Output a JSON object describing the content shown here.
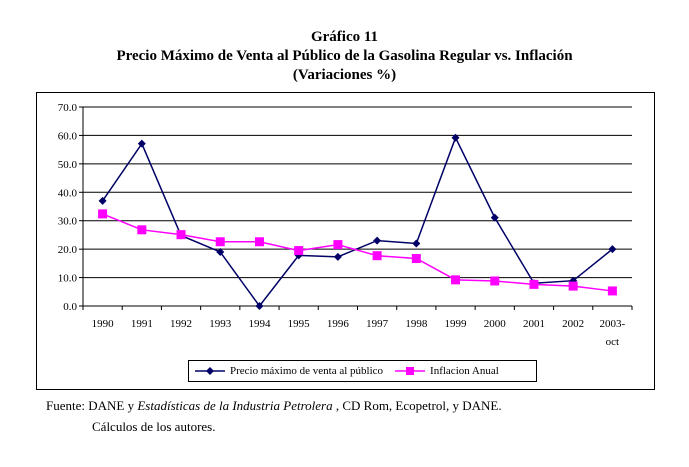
{
  "title": {
    "line1": "Gráfico 11",
    "line2": "Precio Máximo de Venta al Público de la Gasolina Regular vs. Inflación",
    "line3": "(Variaciones %)"
  },
  "chart_data": {
    "type": "line",
    "title": "Precio Máximo de Venta al Público de la Gasolina Regular vs. Inflación (Variaciones %)",
    "categories": [
      "1990",
      "1991",
      "1992",
      "1993",
      "1994",
      "1995",
      "1996",
      "1997",
      "1998",
      "1999",
      "2000",
      "2001",
      "2002",
      "2003-|oct"
    ],
    "yticks": [
      "0.0",
      "10.0",
      "20.0",
      "30.0",
      "40.0",
      "50.0",
      "60.0",
      "70.0"
    ],
    "ylim": [
      0,
      70
    ],
    "grid": true,
    "legend_position": "bottom",
    "series": [
      {
        "name": "Precio máximo de venta al público",
        "color": "#000066",
        "marker": "diamond",
        "values": [
          37.0,
          57.1,
          24.8,
          19.0,
          0.0,
          17.8,
          17.3,
          23.0,
          22.0,
          59.2,
          31.1,
          8.0,
          8.9,
          20.0
        ]
      },
      {
        "name": "Inflacion Anual",
        "color": "#ff00ff",
        "marker": "square",
        "values": [
          32.4,
          26.8,
          25.1,
          22.6,
          22.6,
          19.5,
          21.6,
          17.7,
          16.7,
          9.2,
          8.8,
          7.6,
          7.0,
          5.3
        ]
      }
    ]
  },
  "footer": {
    "prefix": "Fuente: DANE y ",
    "italic": "Estadísticas de la Industria Petrolera",
    "suffix": " , CD Rom, Ecopetrol, y DANE.",
    "line2": "Cálculos de los autores."
  }
}
